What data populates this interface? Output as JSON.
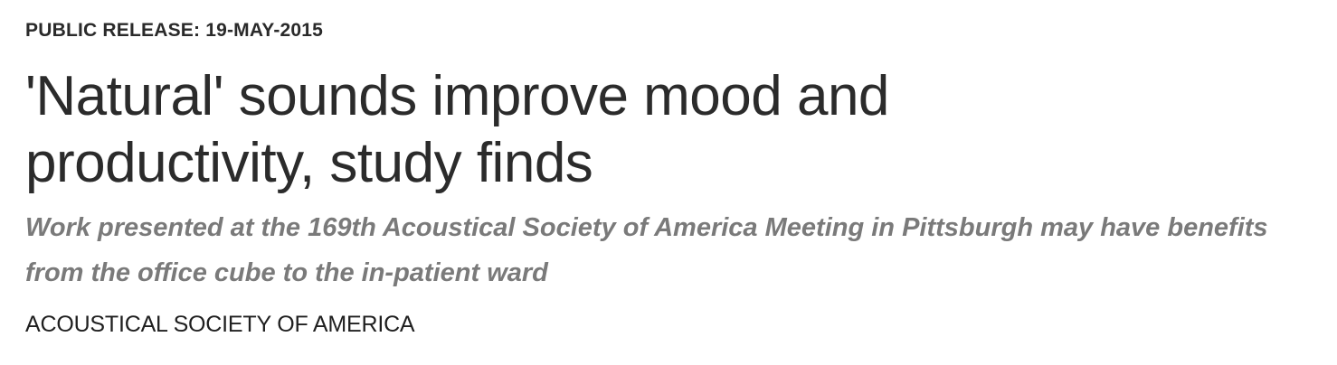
{
  "release": {
    "label": "PUBLIC RELEASE: 19-MAY-2015"
  },
  "headline": {
    "line1": "'Natural' sounds improve mood and",
    "line2": "productivity, study finds"
  },
  "subheadline": {
    "line1": "Work presented at the 169th Acoustical Society of America Meeting in Pittsburgh may have benefits",
    "line2": "from the office cube to the in-patient ward"
  },
  "source": {
    "organization": "ACOUSTICAL SOCIETY OF AMERICA"
  },
  "colors": {
    "text": "#2b2b2b",
    "subheadline": "#7a7a7a",
    "background": "#ffffff"
  }
}
